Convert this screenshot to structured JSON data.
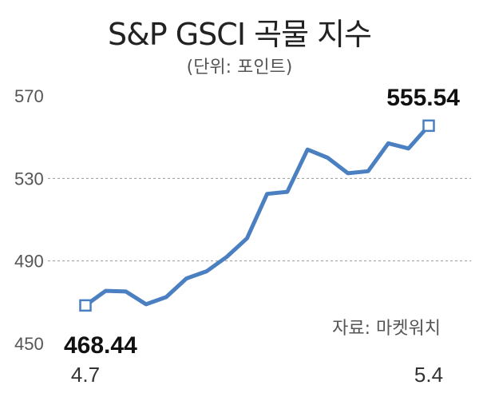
{
  "title": "S&P GSCI 곡물 지수",
  "subtitle": "(단위: 포인트)",
  "source": "자료: 마켓워치",
  "chart_data": {
    "type": "line",
    "title": "S&P GSCI 곡물 지수",
    "ylabel": "(단위: 포인트)",
    "ylim": [
      450,
      570
    ],
    "yticks": [
      "570",
      "530",
      "490",
      "450"
    ],
    "xtick_labels": [
      "4.7",
      "5.4"
    ],
    "grid": "dashed horizontal at 490 and 530",
    "series": [
      {
        "color": "#4a7fc1",
        "values": [
          468.44,
          475.5,
          475.2,
          469.0,
          472.5,
          481.5,
          485.0,
          492.0,
          501.0,
          522.5,
          523.5,
          544.0,
          540.0,
          532.5,
          533.5,
          547.0,
          544.5,
          555.54
        ]
      }
    ],
    "annotations": {
      "start": "468.44",
      "end": "555.54"
    }
  }
}
